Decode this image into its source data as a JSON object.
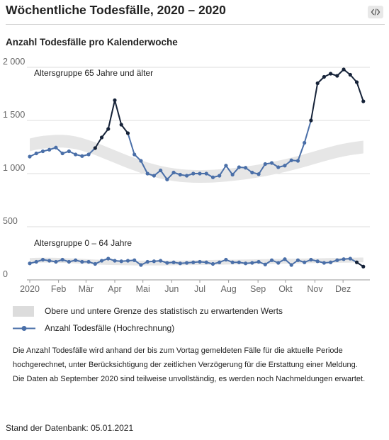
{
  "header": {
    "title": "Wöchentliche Todesfälle, 2020 – 2020",
    "embed_icon": "code-brackets-icon"
  },
  "subtitle": "Anzahl Todesfälle pro Kalenderwoche",
  "chart_data": {
    "type": "line",
    "title": "Anzahl Todesfälle pro Kalenderwoche",
    "x_unit": "Kalenderwoche",
    "x_ticks": [
      {
        "label": "2020",
        "week": 1
      },
      {
        "label": "Feb",
        "week": 5.4
      },
      {
        "label": "Mär",
        "week": 9.6
      },
      {
        "label": "Apr",
        "week": 14
      },
      {
        "label": "Mai",
        "week": 18.3
      },
      {
        "label": "Jun",
        "week": 22.7
      },
      {
        "label": "Jul",
        "week": 27
      },
      {
        "label": "Aug",
        "week": 31.4
      },
      {
        "label": "Sep",
        "week": 35.9
      },
      {
        "label": "Okt",
        "week": 40.1
      },
      {
        "label": "Nov",
        "week": 44.6
      },
      {
        "label": "Dez",
        "week": 48.9
      }
    ],
    "y_ticks": [
      {
        "label": "0",
        "value": 0
      },
      {
        "label": "500",
        "value": 500
      },
      {
        "label": "1 000",
        "value": 1000
      },
      {
        "label": "1 500",
        "value": 1500
      },
      {
        "label": "2 000",
        "value": 2000
      }
    ],
    "xlim": [
      1,
      53
    ],
    "ylim": [
      0,
      2000
    ],
    "grid": "horizontal",
    "colors": {
      "series": "#4a6fa8",
      "projection": "#152238",
      "band": "#e6e6e6",
      "grid": "#dddddd"
    },
    "groups": [
      {
        "label": "Altersgruppe 65 Jahre und älter",
        "projected_from_index": [
          11,
          12,
          13,
          14,
          15,
          16,
          44,
          45,
          46,
          47,
          48,
          49,
          50,
          51,
          52,
          53
        ],
        "values": [
          1160,
          1190,
          1210,
          1225,
          1245,
          1190,
          1210,
          1180,
          1165,
          1180,
          1240,
          1340,
          1420,
          1690,
          1460,
          1380,
          1180,
          1120,
          1000,
          980,
          1030,
          945,
          1010,
          990,
          980,
          1000,
          1000,
          1000,
          965,
          980,
          1075,
          990,
          1060,
          1055,
          1010,
          995,
          1090,
          1100,
          1060,
          1075,
          1125,
          1120,
          1290,
          1500,
          1850,
          1910,
          1940,
          1920,
          1980,
          1930,
          1860,
          1680
        ],
        "band_upper": [
          1330,
          1345,
          1355,
          1360,
          1365,
          1365,
          1360,
          1350,
          1335,
          1315,
          1295,
          1270,
          1245,
          1220,
          1195,
          1170,
          1148,
          1125,
          1105,
          1088,
          1073,
          1060,
          1050,
          1042,
          1037,
          1034,
          1033,
          1034,
          1036,
          1040,
          1045,
          1051,
          1058,
          1066,
          1075,
          1085,
          1096,
          1108,
          1121,
          1135,
          1150,
          1166,
          1183,
          1200,
          1218,
          1236,
          1253,
          1268,
          1282,
          1293,
          1302,
          1310
        ],
        "band_lower": [
          1210,
          1225,
          1235,
          1240,
          1245,
          1245,
          1240,
          1230,
          1215,
          1195,
          1175,
          1150,
          1125,
          1100,
          1075,
          1050,
          1028,
          1005,
          985,
          968,
          953,
          940,
          930,
          922,
          917,
          914,
          913,
          914,
          916,
          920,
          925,
          931,
          938,
          946,
          955,
          965,
          976,
          988,
          1001,
          1015,
          1030,
          1046,
          1063,
          1080,
          1098,
          1116,
          1133,
          1148,
          1162,
          1173,
          1182,
          1190
        ]
      },
      {
        "label": "Altersgruppe 0 – 64 Jahre",
        "projected_from_index": [
          51,
          52,
          53
        ],
        "values": [
          155,
          170,
          190,
          180,
          170,
          190,
          170,
          185,
          170,
          170,
          150,
          180,
          200,
          180,
          175,
          180,
          185,
          140,
          170,
          175,
          180,
          160,
          165,
          155,
          160,
          165,
          170,
          165,
          150,
          165,
          190,
          165,
          165,
          155,
          160,
          170,
          145,
          185,
          160,
          195,
          140,
          185,
          165,
          190,
          175,
          160,
          165,
          185,
          195,
          200,
          165,
          125
        ],
        "band_upper": [
          205,
          207,
          208,
          208,
          207,
          205,
          203,
          200,
          197,
          194,
          191,
          188,
          186,
          184,
          183,
          182,
          181,
          181,
          181,
          181,
          181,
          181,
          182,
          182,
          183,
          184,
          185,
          186,
          187,
          188,
          189,
          190,
          191,
          192,
          193,
          194,
          195,
          196,
          197,
          198,
          199,
          200,
          201,
          202,
          203,
          204,
          205,
          206,
          207,
          208,
          209,
          210
        ],
        "band_lower": [
          160,
          162,
          163,
          163,
          162,
          160,
          158,
          155,
          152,
          149,
          146,
          143,
          141,
          139,
          138,
          137,
          136,
          136,
          136,
          136,
          136,
          136,
          137,
          137,
          138,
          139,
          140,
          141,
          142,
          143,
          144,
          145,
          146,
          147,
          148,
          149,
          150,
          151,
          152,
          153,
          154,
          155,
          156,
          157,
          158,
          159,
          160,
          161,
          162,
          163,
          164,
          165
        ]
      }
    ]
  },
  "legend": {
    "band_label": "Obere und untere Grenze des statistisch zu erwartenden Werts",
    "line_label": "Anzahl Todesfälle (Hochrechnung)"
  },
  "note": {
    "paragraph1": "Die Anzahl Todesfälle wird anhand der bis zum Vortag gemeldeten Fälle für die aktuelle Periode hochgerechnet, unter Berücksichtigung der zeitlichen Verzögerung für die Erstattung einer Meldung.",
    "paragraph2": "Die Daten ab September 2020 sind teilweise unvollständig, es werden noch Nachmeldungen erwartet."
  },
  "footer": "Stand der Datenbank: 05.01.2021"
}
